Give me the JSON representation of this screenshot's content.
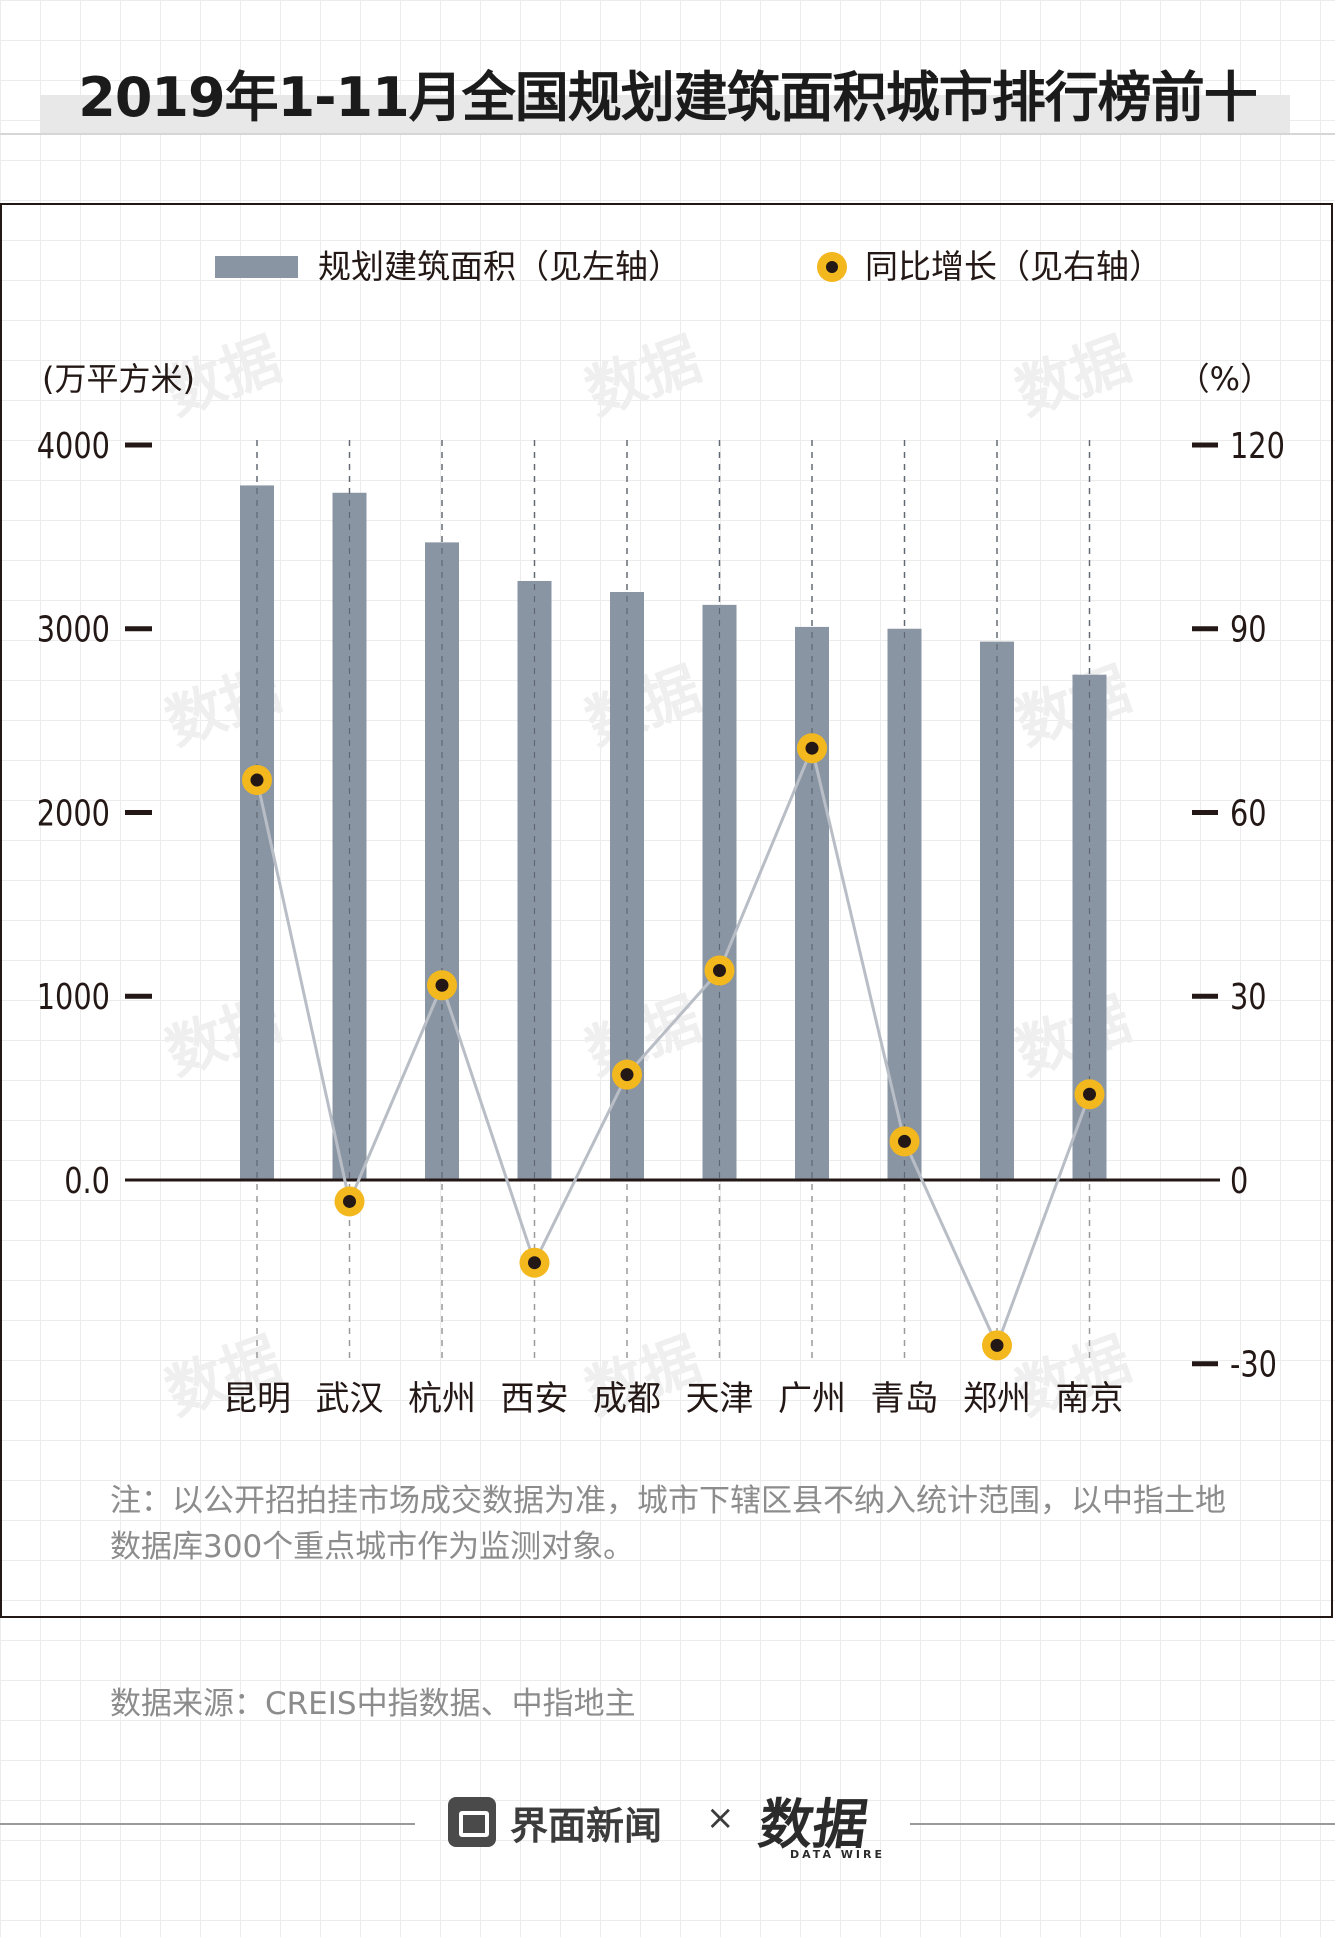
{
  "title": "2019年1-11月全国规划建筑面积城市排行榜前十",
  "legend": {
    "bar_label": "规划建筑面积（见左轴）",
    "line_label": "同比增长（见右轴）"
  },
  "axis": {
    "left_unit": "(万平方米)",
    "right_unit": "（%）"
  },
  "note": "注：以公开招拍挂市场成交数据为准，城市下辖区县不纳入统计范围，以中指土地数据库300个重点城市作为监测对象。",
  "source": "数据来源：CREIS中指数据、中指地主",
  "footer": {
    "brand": "界面新闻",
    "times": "×",
    "logo": "数据",
    "logo_sub": "DATA WIRE"
  },
  "watermark": "数据",
  "colors": {
    "bar": "#8a95a3",
    "line": "#b9bec6",
    "marker_fill": "#f3b81e",
    "marker_center": "#231815",
    "axis": "#231815"
  },
  "chart_data": {
    "type": "bar",
    "categories": [
      "昆明",
      "武汉",
      "杭州",
      "西安",
      "成都",
      "天津",
      "广州",
      "青岛",
      "郑州",
      "南京"
    ],
    "series": [
      {
        "name": "规划建筑面积（见左轴）",
        "type": "bar",
        "axis": "left",
        "values": [
          3780,
          3740,
          3470,
          3260,
          3200,
          3130,
          3010,
          3000,
          2930,
          2750
        ]
      },
      {
        "name": "同比增长（见右轴）",
        "type": "line",
        "axis": "right",
        "values": [
          65.3,
          -3.5,
          31.8,
          -13.5,
          17.2,
          34.2,
          70.5,
          6.3,
          -27.0,
          14.0
        ]
      }
    ],
    "left_axis": {
      "min": -1000,
      "max": 4000,
      "ticks": [
        4000,
        3000,
        2000,
        1000,
        0
      ],
      "tick_labels": [
        "4000",
        "3000",
        "2000",
        "1000",
        "0.0"
      ]
    },
    "right_axis": {
      "min": -30,
      "max": 120,
      "ticks": [
        120,
        90,
        60,
        30,
        0,
        -30
      ],
      "tick_labels": [
        "120",
        "90",
        "60",
        "30",
        "0",
        "-30"
      ]
    },
    "grid": "vertical dashed per category",
    "legend_position": "top"
  }
}
